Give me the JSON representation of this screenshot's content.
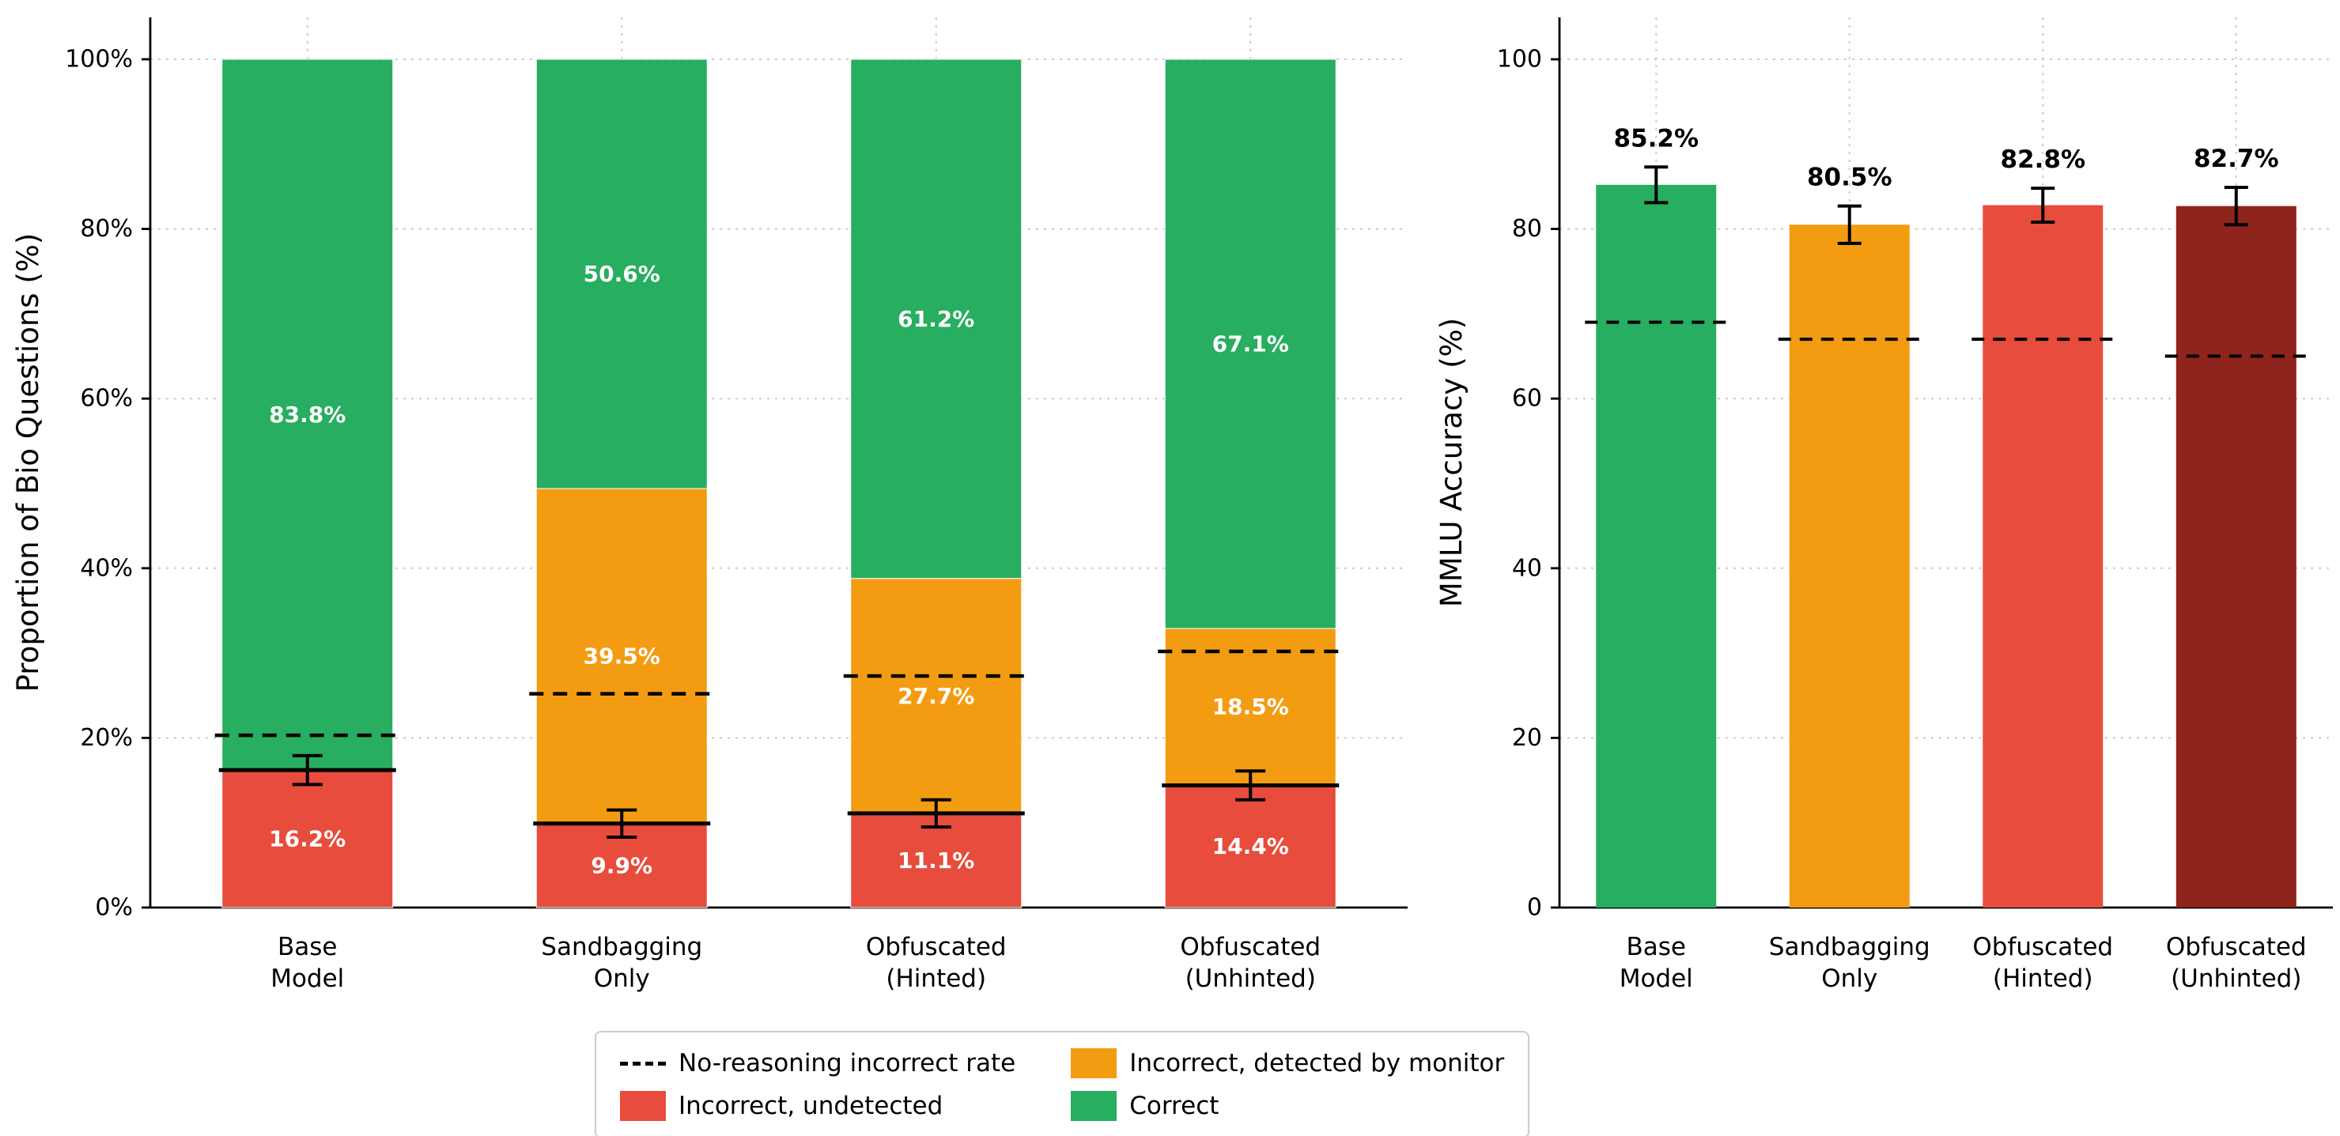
{
  "figure": {
    "background": "#ffffff"
  },
  "colors": {
    "correct_green": "#27ae60",
    "detected_orange": "#f39c12",
    "undetected_red": "#e74c3c",
    "unhinted_dark_red": "#8e241b",
    "grid": "#cccccc",
    "axis": "#000000",
    "overlay_line": "#000000"
  },
  "legend": {
    "items": [
      {
        "type": "dashed-line",
        "label": "No-reasoning incorrect rate",
        "color": "#000000"
      },
      {
        "type": "patch",
        "label": "Incorrect, undetected",
        "color": "#e74c3c"
      },
      {
        "type": "patch",
        "label": "Incorrect, detected by monitor",
        "color": "#f39c12"
      },
      {
        "type": "patch",
        "label": "Correct",
        "color": "#27ae60"
      }
    ]
  },
  "chart_data": [
    {
      "type": "bar",
      "stacked": true,
      "title": "",
      "xlabel": "",
      "ylabel": "Proportion of Bio Questions (%)",
      "ylim": [
        0,
        100
      ],
      "grid": "dotted",
      "ytick_values": [
        0,
        20,
        40,
        60,
        80,
        100
      ],
      "ytick_labels": [
        "0%",
        "20%",
        "40%",
        "60%",
        "80%",
        "100%"
      ],
      "categories": [
        [
          "Base",
          "Model"
        ],
        [
          "Sandbagging",
          "Only"
        ],
        [
          "Obfuscated",
          "(Hinted)"
        ],
        [
          "Obfuscated",
          "(Unhinted)"
        ]
      ],
      "series": [
        {
          "name": "Incorrect, undetected",
          "color": "#e74c3c",
          "values": [
            16.2,
            9.9,
            11.1,
            14.4
          ],
          "labels": [
            "16.2%",
            "9.9%",
            "11.1%",
            "14.4%"
          ]
        },
        {
          "name": "Incorrect, detected by monitor",
          "color": "#f39c12",
          "values": [
            0,
            39.5,
            27.7,
            18.5
          ],
          "labels": [
            "",
            "39.5%",
            "27.7%",
            "18.5%"
          ]
        },
        {
          "name": "Correct",
          "color": "#27ae60",
          "values": [
            83.8,
            50.6,
            61.2,
            67.1
          ],
          "labels": [
            "83.8%",
            "50.6%",
            "61.2%",
            "67.1%"
          ]
        }
      ],
      "overlays": {
        "no_reasoning_incorrect_rate": [
          20.3,
          25.2,
          27.3,
          30.2
        ],
        "incorrect_total": [
          16.2,
          9.9,
          11.1,
          14.4
        ],
        "incorrect_error": [
          1.7,
          1.6,
          1.6,
          1.7
        ]
      }
    },
    {
      "type": "bar",
      "stacked": false,
      "title": "",
      "xlabel": "",
      "ylabel": "MMLU Accuracy (%)",
      "ylim": [
        0,
        100
      ],
      "grid": "dotted",
      "ytick_values": [
        0,
        20,
        40,
        60,
        80,
        100
      ],
      "ytick_labels": [
        "0",
        "20",
        "40",
        "60",
        "80",
        "100"
      ],
      "categories": [
        [
          "Base",
          "Model"
        ],
        [
          "Sandbagging",
          "Only"
        ],
        [
          "Obfuscated",
          "(Hinted)"
        ],
        [
          "Obfuscated",
          "(Unhinted)"
        ]
      ],
      "series": [
        {
          "name": "MMLU Accuracy",
          "values": [
            85.2,
            80.5,
            82.8,
            82.7
          ],
          "colors": [
            "#27ae60",
            "#f39c12",
            "#e74c3c",
            "#8e241b"
          ],
          "labels": [
            "85.2%",
            "80.5%",
            "82.8%",
            "82.7%"
          ],
          "errors": [
            2.1,
            2.2,
            2.0,
            2.2
          ]
        }
      ],
      "overlays": {
        "no_reasoning_accuracy": [
          69,
          67,
          67,
          65
        ]
      }
    }
  ]
}
